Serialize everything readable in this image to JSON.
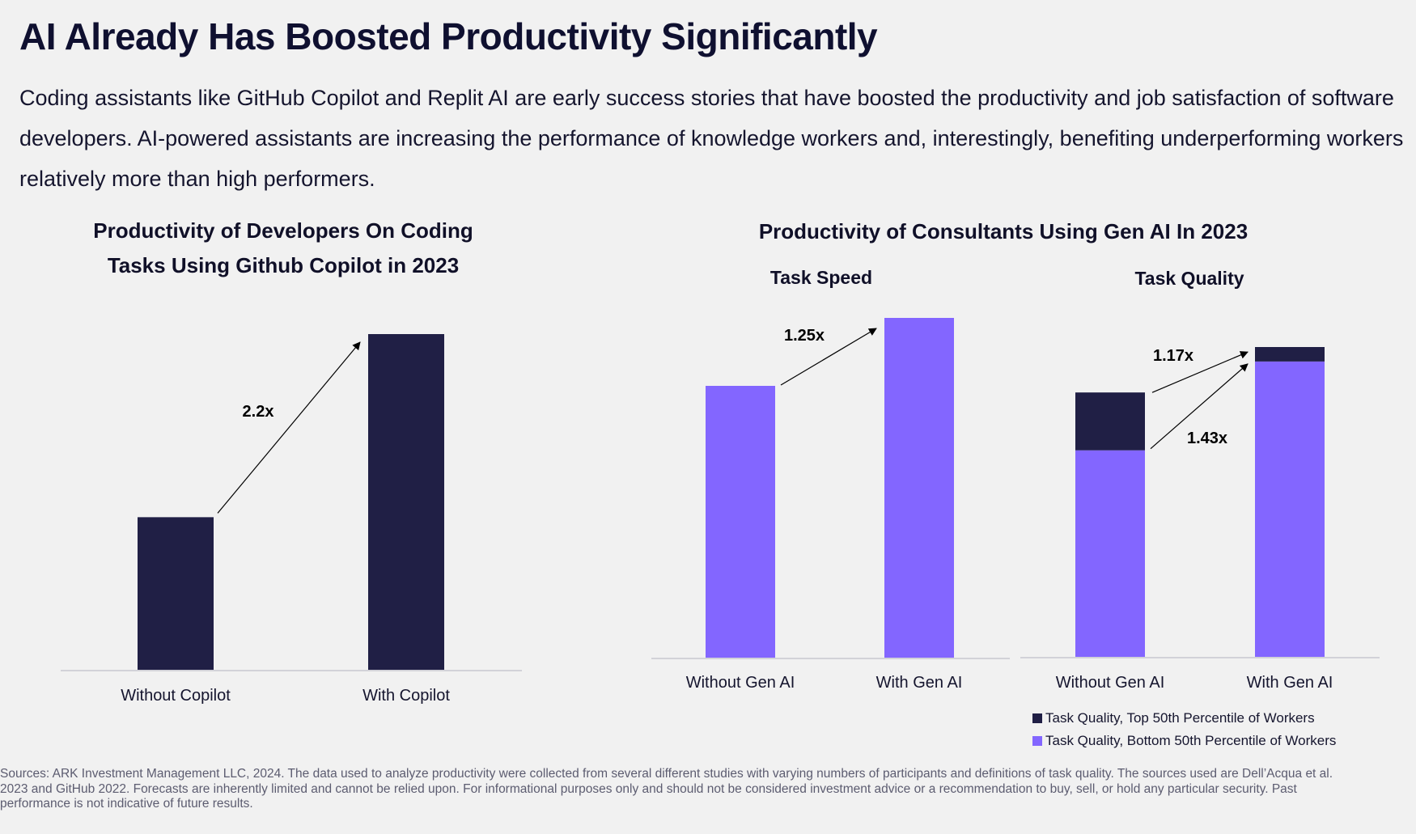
{
  "header": {
    "title": "AI Already Has Boosted Productivity Significantly",
    "subtitle": "Coding assistants like GitHub Copilot and Replit AI are early success stories that have boosted the productivity and job satisfaction of software developers. AI-powered assistants are increasing the performance of knowledge workers and, interestingly, benefiting underperforming workers relatively more than high performers."
  },
  "colors": {
    "navy": "#201f45",
    "purple": "#8366ff",
    "axis": "#c8c8d0",
    "background": "#f1f1f1"
  },
  "chart_data": [
    {
      "type": "bar",
      "title": "Productivity of Developers On Coding Tasks Using Github Copilot in 2023",
      "categories": [
        "Without Copilot",
        "With Copilot"
      ],
      "values": [
        1.0,
        2.2
      ],
      "ylim": [
        0,
        2.2
      ],
      "annotations": [
        {
          "text": "2.2x",
          "from": "Without Copilot",
          "to": "With Copilot"
        }
      ],
      "xlabel": "",
      "ylabel": "",
      "grid": false
    },
    {
      "type": "bar",
      "group_title": "Productivity of Consultants Using Gen AI In 2023",
      "title": "Task Speed",
      "categories": [
        "Without Gen AI",
        "With Gen AI"
      ],
      "values": [
        1.0,
        1.25
      ],
      "ylim": [
        0,
        1.25
      ],
      "annotations": [
        {
          "text": "1.25x",
          "from": "Without Gen AI",
          "to": "With Gen AI"
        }
      ],
      "xlabel": "",
      "ylabel": "",
      "grid": false
    },
    {
      "type": "bar",
      "stacked": true,
      "group_title": "Productivity of Consultants Using Gen AI In 2023",
      "title": "Task Quality",
      "categories": [
        "Without Gen AI",
        "With Gen AI"
      ],
      "series": [
        {
          "name": "Task Quality, Bottom 50th Percentile of Workers",
          "values": [
            1.0,
            1.43
          ]
        },
        {
          "name": "Task Quality, Top 50th Percentile of Workers",
          "values": [
            0.28,
            0.07
          ]
        }
      ],
      "ylim": [
        0,
        1.5
      ],
      "annotations": [
        {
          "text": "1.17x",
          "series": "total",
          "from": "Without Gen AI",
          "to": "With Gen AI"
        },
        {
          "text": "1.43x",
          "series": "Task Quality, Bottom 50th Percentile of Workers",
          "from": "Without Gen AI",
          "to": "With Gen AI"
        }
      ],
      "legend": "bottom-right",
      "xlabel": "",
      "ylabel": "",
      "grid": false
    }
  ],
  "charts": {
    "copilot": {
      "title_line1": "Productivity of Developers On Coding",
      "title_line2": "Tasks Using Github Copilot in 2023"
    },
    "consultants": {
      "title": "Productivity of Consultants Using Gen AI In 2023",
      "speed_title": "Task Speed",
      "quality_title": "Task Quality"
    }
  },
  "legend": {
    "items": [
      {
        "label": "Task Quality, Top 50th Percentile of Workers",
        "color": "#201f45"
      },
      {
        "label": "Task Quality, Bottom 50th Percentile of Workers",
        "color": "#8366ff"
      }
    ]
  },
  "footer": {
    "sources": "Sources: ARK Investment Management LLC, 2024. The data used to analyze productivity were collected from several different studies with varying numbers of participants and definitions of task quality. The sources used are Dell’Acqua et al. 2023 and GitHub 2022. Forecasts are inherently limited and cannot be relied upon. For informational purposes only and should not be considered investment advice or a recommendation to buy, sell, or hold any particular security. Past performance is not indicative of future results."
  }
}
